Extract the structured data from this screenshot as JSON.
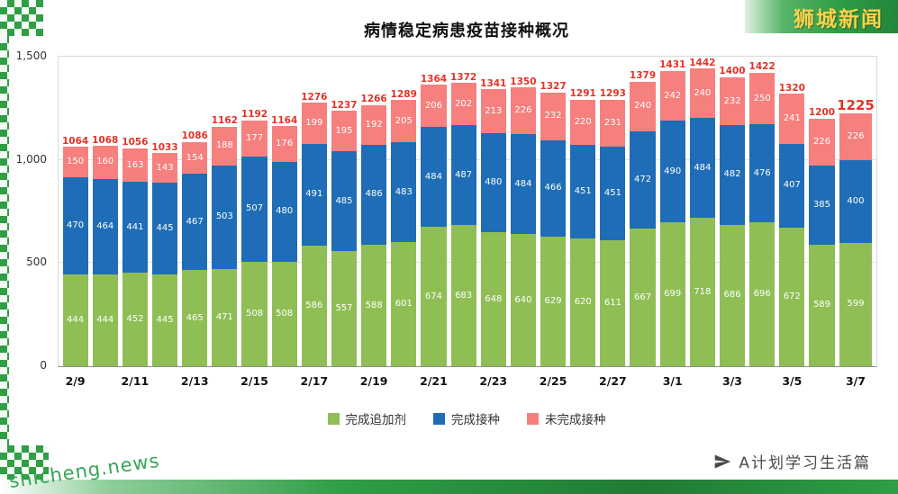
{
  "brand": {
    "top_right": "狮城新闻",
    "watermark": "shicheng.news",
    "bottom_right": "A计划学习生活篇"
  },
  "chart_data": {
    "type": "bar",
    "stacked": true,
    "title": "病情稳定病患疫苗接种概况",
    "ylim": [
      0,
      1500
    ],
    "grid": true,
    "legend_position": "bottom",
    "y_ticks": [
      {
        "label": "0",
        "value": 0
      },
      {
        "label": "500",
        "value": 500
      },
      {
        "label": "1,000",
        "value": 1000
      },
      {
        "label": "1,500",
        "value": 1500
      }
    ],
    "x_tick_labels": [
      "2/9",
      "2/11",
      "2/13",
      "2/15",
      "2/17",
      "2/19",
      "2/21",
      "2/23",
      "2/25",
      "2/27",
      "3/1",
      "3/3",
      "3/5",
      "3/7"
    ],
    "x_tick_every": 2,
    "series": [
      {
        "name": "完成追加剂",
        "color": "#8fbe55",
        "values": [
          444,
          444,
          452,
          445,
          465,
          471,
          508,
          508,
          586,
          557,
          588,
          601,
          674,
          683,
          648,
          640,
          629,
          620,
          611,
          667,
          699,
          718,
          686,
          696,
          672,
          589,
          599
        ]
      },
      {
        "name": "完成接种",
        "color": "#1e6db6",
        "values": [
          470,
          464,
          441,
          445,
          467,
          503,
          507,
          480,
          491,
          485,
          486,
          483,
          484,
          487,
          480,
          484,
          466,
          451,
          451,
          472,
          490,
          484,
          482,
          476,
          407,
          385,
          400
        ]
      },
      {
        "name": "未完成接种",
        "color": "#f5807e",
        "values": [
          150,
          160,
          163,
          143,
          154,
          188,
          177,
          176,
          199,
          195,
          192,
          205,
          206,
          202,
          213,
          226,
          232,
          220,
          231,
          240,
          242,
          240,
          232,
          250,
          241,
          226,
          226
        ]
      }
    ],
    "totals": [
      1064,
      1068,
      1056,
      1033,
      1086,
      1162,
      1192,
      1164,
      1276,
      1237,
      1266,
      1289,
      1364,
      1372,
      1341,
      1350,
      1327,
      1291,
      1293,
      1379,
      1431,
      1442,
      1400,
      1422,
      1320,
      1200,
      1225
    ],
    "total_label_color": "#e43226",
    "highlight_last_total": true
  }
}
